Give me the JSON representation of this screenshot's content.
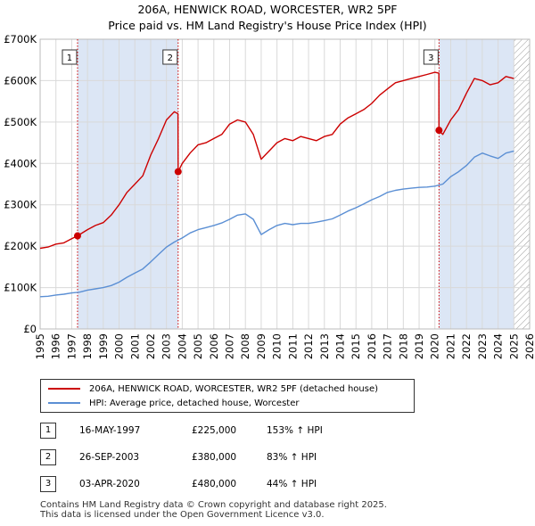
{
  "title_line1": "206A, HENWICK ROAD, WORCESTER, WR2 5PF",
  "title_line2": "Price paid vs. HM Land Registry's House Price Index (HPI)",
  "colors": {
    "property": "#cc0000",
    "hpi": "#5b8fd4",
    "shade": "#dce6f5",
    "marker_line": "#cc0000"
  },
  "chart_data": {
    "type": "line",
    "xlim": [
      1995,
      2026
    ],
    "ylim": [
      0,
      700000
    ],
    "y_ticks": [
      0,
      100000,
      200000,
      300000,
      400000,
      500000,
      600000,
      700000
    ],
    "y_tick_labels": [
      "£0",
      "£100K",
      "£200K",
      "£300K",
      "£400K",
      "£500K",
      "£600K",
      "£700K"
    ],
    "x_ticks": [
      1995,
      1996,
      1997,
      1998,
      1999,
      2000,
      2001,
      2002,
      2003,
      2004,
      2005,
      2006,
      2007,
      2008,
      2009,
      2010,
      2011,
      2012,
      2013,
      2014,
      2015,
      2016,
      2017,
      2018,
      2019,
      2020,
      2021,
      2022,
      2023,
      2024,
      2025,
      2026
    ],
    "x_tick_labels": [
      "1995",
      "1996",
      "1997",
      "1998",
      "1999",
      "2000",
      "2001",
      "2002",
      "2003",
      "2004",
      "2005",
      "2006",
      "2007",
      "2008",
      "2009",
      "2010",
      "2011",
      "2012",
      "2013",
      "2014",
      "2015",
      "2016",
      "2017",
      "2018",
      "2019",
      "2020",
      "2021",
      "2022",
      "2023",
      "2024",
      "2025",
      "2026"
    ],
    "series": [
      {
        "name": "206A, HENWICK ROAD, WORCESTER, WR2 5PF (detached house)",
        "x": [
          1995.0,
          1995.5,
          1996.0,
          1996.5,
          1997.0,
          1997.37,
          1998.0,
          1998.5,
          1999.0,
          1999.5,
          2000.0,
          2000.5,
          2001.0,
          2001.5,
          2002.0,
          2002.5,
          2003.0,
          2003.5,
          2003.73,
          2003.74,
          2004.0,
          2004.5,
          2005.0,
          2005.5,
          2006.0,
          2006.5,
          2007.0,
          2007.5,
          2008.0,
          2008.5,
          2009.0,
          2009.5,
          2010.0,
          2010.5,
          2011.0,
          2011.5,
          2012.0,
          2012.5,
          2013.0,
          2013.5,
          2014.0,
          2014.5,
          2015.0,
          2015.5,
          2016.0,
          2016.5,
          2017.0,
          2017.5,
          2018.0,
          2018.5,
          2019.0,
          2019.5,
          2020.0,
          2020.25,
          2020.26,
          2020.5,
          2021.0,
          2021.5,
          2022.0,
          2022.5,
          2023.0,
          2023.5,
          2024.0,
          2024.5,
          2025.0
        ],
        "values": [
          195000,
          198000,
          205000,
          208000,
          218000,
          225000,
          240000,
          250000,
          257000,
          275000,
          300000,
          330000,
          350000,
          370000,
          420000,
          460000,
          505000,
          525000,
          520000,
          380000,
          400000,
          425000,
          445000,
          450000,
          460000,
          470000,
          495000,
          505000,
          500000,
          470000,
          410000,
          430000,
          450000,
          460000,
          455000,
          465000,
          460000,
          455000,
          465000,
          470000,
          495000,
          510000,
          520000,
          530000,
          545000,
          565000,
          580000,
          595000,
          600000,
          605000,
          610000,
          615000,
          620000,
          618000,
          480000,
          470000,
          505000,
          530000,
          570000,
          605000,
          600000,
          590000,
          595000,
          610000,
          605000
        ]
      },
      {
        "name": "HPI: Average price, detached house, Worcester",
        "x": [
          1995.0,
          1995.5,
          1996.0,
          1996.5,
          1997.0,
          1997.5,
          1998.0,
          1998.5,
          1999.0,
          1999.5,
          2000.0,
          2000.5,
          2001.0,
          2001.5,
          2002.0,
          2002.5,
          2003.0,
          2003.5,
          2004.0,
          2004.5,
          2005.0,
          2005.5,
          2006.0,
          2006.5,
          2007.0,
          2007.5,
          2008.0,
          2008.5,
          2009.0,
          2009.5,
          2010.0,
          2010.5,
          2011.0,
          2011.5,
          2012.0,
          2012.5,
          2013.0,
          2013.5,
          2014.0,
          2014.5,
          2015.0,
          2015.5,
          2016.0,
          2016.5,
          2017.0,
          2017.5,
          2018.0,
          2018.5,
          2019.0,
          2019.5,
          2020.0,
          2020.5,
          2021.0,
          2021.5,
          2022.0,
          2022.5,
          2023.0,
          2023.5,
          2024.0,
          2024.5,
          2025.0
        ],
        "values": [
          78000,
          79000,
          82000,
          84000,
          87000,
          89000,
          94000,
          97000,
          100000,
          105000,
          113000,
          125000,
          135000,
          145000,
          162000,
          180000,
          198000,
          210000,
          220000,
          232000,
          240000,
          245000,
          250000,
          256000,
          265000,
          275000,
          278000,
          265000,
          228000,
          240000,
          250000,
          255000,
          252000,
          255000,
          255000,
          258000,
          262000,
          266000,
          275000,
          285000,
          293000,
          302000,
          312000,
          320000,
          330000,
          335000,
          338000,
          340000,
          342000,
          343000,
          345000,
          350000,
          368000,
          380000,
          395000,
          415000,
          425000,
          418000,
          412000,
          425000,
          430000
        ]
      }
    ],
    "markers": [
      {
        "label": "1",
        "x": 1997.37,
        "y": 225000
      },
      {
        "label": "2",
        "x": 2003.74,
        "y": 380000
      },
      {
        "label": "3",
        "x": 2020.26,
        "y": 480000
      }
    ],
    "shaded_regions": [
      [
        1997.37,
        2003.74
      ],
      [
        2020.26,
        2025.0
      ]
    ],
    "hatched_region": [
      2025.0,
      2026
    ]
  },
  "legend": {
    "property_label": "206A, HENWICK ROAD, WORCESTER, WR2 5PF (detached house)",
    "hpi_label": "HPI: Average price, detached house, Worcester"
  },
  "transactions": [
    {
      "num": "1",
      "date": "16-MAY-1997",
      "price": "£225,000",
      "hpi": "153% ↑ HPI"
    },
    {
      "num": "2",
      "date": "26-SEP-2003",
      "price": "£380,000",
      "hpi": "83% ↑ HPI"
    },
    {
      "num": "3",
      "date": "03-APR-2020",
      "price": "£480,000",
      "hpi": "44% ↑ HPI"
    }
  ],
  "footer_line1": "Contains HM Land Registry data © Crown copyright and database right 2025.",
  "footer_line2": "This data is licensed under the Open Government Licence v3.0."
}
